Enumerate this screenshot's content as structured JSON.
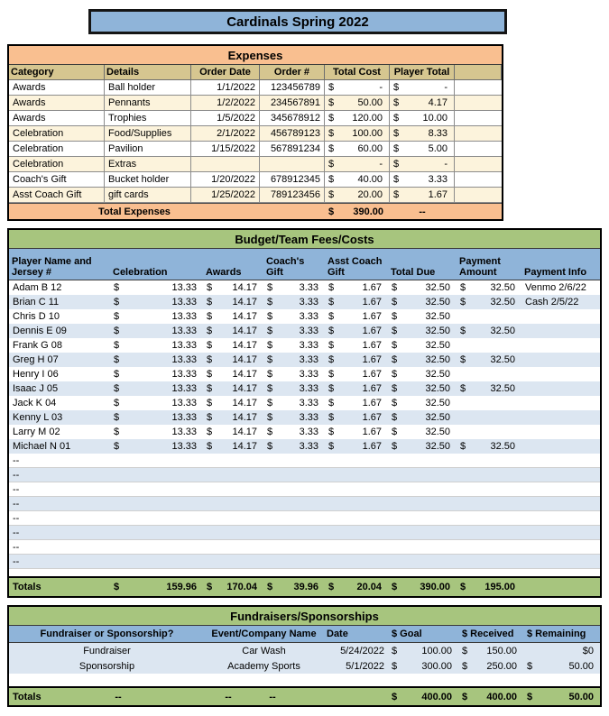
{
  "meta": {
    "currency": "$"
  },
  "title": "Cardinals Spring 2022",
  "colors": {
    "title_blue": "#8fb4d9",
    "row_blue": "#dce6f1",
    "green": "#a7c57e",
    "orange": "#f9bf90",
    "tan_header": "#d6c690",
    "cream_row": "#fcf3dc"
  },
  "expenses": {
    "section_title": "Expenses",
    "columns": {
      "category": "Category",
      "details": "Details",
      "order_date": "Order Date",
      "order_num": "Order #",
      "total_cost": "Total Cost",
      "player_total": "Player Total"
    },
    "rows": [
      {
        "category": "Awards",
        "details": "Ball holder",
        "order_date": "1/1/2022",
        "order_num": "123456789",
        "total_cost": "-",
        "player_total": "-"
      },
      {
        "category": "Awards",
        "details": "Pennants",
        "order_date": "1/2/2022",
        "order_num": "234567891",
        "total_cost": "50.00",
        "player_total": "4.17"
      },
      {
        "category": "Awards",
        "details": "Trophies",
        "order_date": "1/5/2022",
        "order_num": "345678912",
        "total_cost": "120.00",
        "player_total": "10.00"
      },
      {
        "category": "Celebration",
        "details": "Food/Supplies",
        "order_date": "2/1/2022",
        "order_num": "456789123",
        "total_cost": "100.00",
        "player_total": "8.33"
      },
      {
        "category": "Celebration",
        "details": "Pavilion",
        "order_date": "1/15/2022",
        "order_num": "567891234",
        "total_cost": "60.00",
        "player_total": "5.00"
      },
      {
        "category": "Celebration",
        "details": "Extras",
        "order_date": "",
        "order_num": "",
        "total_cost": "-",
        "player_total": "-"
      },
      {
        "category": "Coach's Gift",
        "details": "Bucket holder",
        "order_date": "1/20/2022",
        "order_num": "678912345",
        "total_cost": "40.00",
        "player_total": "3.33"
      },
      {
        "category": "Asst Coach Gift",
        "details": "gift cards",
        "order_date": "1/25/2022",
        "order_num": "789123456",
        "total_cost": "20.00",
        "player_total": "1.67"
      }
    ],
    "totals": {
      "label": "Total Expenses",
      "total_cost": "390.00",
      "player_total": "--"
    }
  },
  "budget": {
    "section_title": "Budget/Team Fees/Costs",
    "columns": {
      "player": "Player Name and Jersey #",
      "celebration": "Celebration",
      "awards": "Awards",
      "coach": "Coach's Gift",
      "asst": "Asst Coach Gift",
      "due": "Total Due",
      "paid": "Payment Amount",
      "info": "Payment Info"
    },
    "rows": [
      {
        "player": "Adam B 12",
        "celebration": "13.33",
        "awards": "14.17",
        "coach": "3.33",
        "asst": "1.67",
        "due": "32.50",
        "paid": "32.50",
        "info": "Venmo 2/6/22"
      },
      {
        "player": "Brian C 11",
        "celebration": "13.33",
        "awards": "14.17",
        "coach": "3.33",
        "asst": "1.67",
        "due": "32.50",
        "paid": "32.50",
        "info": "Cash 2/5/22"
      },
      {
        "player": "Chris D 10",
        "celebration": "13.33",
        "awards": "14.17",
        "coach": "3.33",
        "asst": "1.67",
        "due": "32.50",
        "paid": "",
        "info": ""
      },
      {
        "player": "Dennis E 09",
        "celebration": "13.33",
        "awards": "14.17",
        "coach": "3.33",
        "asst": "1.67",
        "due": "32.50",
        "paid": "32.50",
        "info": ""
      },
      {
        "player": "Frank G 08",
        "celebration": "13.33",
        "awards": "14.17",
        "coach": "3.33",
        "asst": "1.67",
        "due": "32.50",
        "paid": "",
        "info": ""
      },
      {
        "player": "Greg H 07",
        "celebration": "13.33",
        "awards": "14.17",
        "coach": "3.33",
        "asst": "1.67",
        "due": "32.50",
        "paid": "32.50",
        "info": ""
      },
      {
        "player": "Henry I 06",
        "celebration": "13.33",
        "awards": "14.17",
        "coach": "3.33",
        "asst": "1.67",
        "due": "32.50",
        "paid": "",
        "info": ""
      },
      {
        "player": "Isaac J 05",
        "celebration": "13.33",
        "awards": "14.17",
        "coach": "3.33",
        "asst": "1.67",
        "due": "32.50",
        "paid": "32.50",
        "info": ""
      },
      {
        "player": "Jack K 04",
        "celebration": "13.33",
        "awards": "14.17",
        "coach": "3.33",
        "asst": "1.67",
        "due": "32.50",
        "paid": "",
        "info": ""
      },
      {
        "player": "Kenny L 03",
        "celebration": "13.33",
        "awards": "14.17",
        "coach": "3.33",
        "asst": "1.67",
        "due": "32.50",
        "paid": "",
        "info": ""
      },
      {
        "player": "Larry M 02",
        "celebration": "13.33",
        "awards": "14.17",
        "coach": "3.33",
        "asst": "1.67",
        "due": "32.50",
        "paid": "",
        "info": ""
      },
      {
        "player": "Michael N 01",
        "celebration": "13.33",
        "awards": "14.17",
        "coach": "3.33",
        "asst": "1.67",
        "due": "32.50",
        "paid": "32.50",
        "info": ""
      }
    ],
    "placeholder_rows": [
      "--",
      "--",
      "--",
      "--",
      "--",
      "--",
      "--",
      "--"
    ],
    "totals": {
      "label": "Totals",
      "celebration": "159.96",
      "awards": "170.04",
      "coach": "39.96",
      "asst": "20.04",
      "due": "390.00",
      "paid": "195.00",
      "info": ""
    }
  },
  "fundraisers": {
    "section_title": "Fundraisers/Sponsorships",
    "columns": {
      "type": "Fundraiser or Sponsorship?",
      "event": "Event/Company Name",
      "date": "Date",
      "goal": "$ Goal",
      "received": "$ Received",
      "remaining": "$ Remaining"
    },
    "rows": [
      {
        "type": "Fundraiser",
        "event": "Car Wash",
        "date": "5/24/2022",
        "goal": "100.00",
        "received": "150.00",
        "remaining": "$0"
      },
      {
        "type": "Sponsorship",
        "event": "Academy Sports",
        "date": "5/1/2022",
        "goal": "300.00",
        "received": "250.00",
        "remaining": "50.00"
      }
    ],
    "totals": {
      "label": "Totals",
      "dash1": "--",
      "dash2": "--",
      "dash3": "--",
      "goal": "400.00",
      "received": "400.00",
      "remaining": "50.00"
    }
  }
}
